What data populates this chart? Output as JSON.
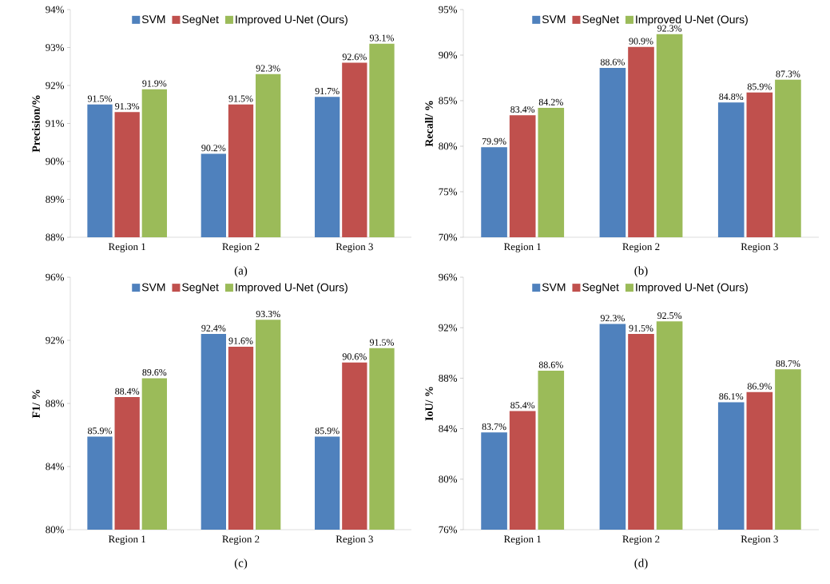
{
  "chart_data": [
    {
      "type": "bar",
      "ylabel": "Precision/%",
      "categories": [
        "Region 1",
        "Region 2",
        "Region 3"
      ],
      "legend": "top",
      "annotations": [
        "(a)"
      ],
      "ylim": [
        88,
        94
      ],
      "yticks": [
        {
          "value": 88,
          "label": "88%"
        },
        {
          "value": 89,
          "label": "89%"
        },
        {
          "value": 90,
          "label": "90%"
        },
        {
          "value": 91,
          "label": "91%"
        },
        {
          "value": 92,
          "label": "92%"
        },
        {
          "value": 93,
          "label": "93%"
        },
        {
          "value": 94,
          "label": "94%"
        }
      ],
      "series": [
        {
          "name": "SVM",
          "color": "#4f81bd",
          "values": [
            91.5,
            90.2,
            91.7
          ],
          "value_labels": [
            "91.5%",
            "90.2%",
            "91.7%"
          ]
        },
        {
          "name": "SegNet",
          "color": "#c0504d",
          "values": [
            91.3,
            91.5,
            92.6
          ],
          "value_labels": [
            "91.3%",
            "91.5%",
            "92.6%"
          ]
        },
        {
          "name": "Improved U-Net (Ours)",
          "color": "#9bbb59",
          "values": [
            91.9,
            92.3,
            93.1
          ],
          "value_labels": [
            "91.9%",
            "92.3%",
            "93.1%"
          ]
        }
      ]
    },
    {
      "type": "bar",
      "ylabel": "Recall/ %",
      "categories": [
        "Region 1",
        "Region 2",
        "Region 3"
      ],
      "legend": "top",
      "annotations": [
        "(b)"
      ],
      "ylim": [
        70,
        95
      ],
      "yticks": [
        {
          "value": 70,
          "label": "70%"
        },
        {
          "value": 75,
          "label": "75%"
        },
        {
          "value": 80,
          "label": "80%"
        },
        {
          "value": 85,
          "label": "85%"
        },
        {
          "value": 90,
          "label": "90%"
        },
        {
          "value": 95,
          "label": "95%"
        }
      ],
      "series": [
        {
          "name": "SVM",
          "color": "#4f81bd",
          "values": [
            79.9,
            88.6,
            84.8
          ],
          "value_labels": [
            "79.9%",
            "88.6%",
            "84.8%"
          ]
        },
        {
          "name": "SegNet",
          "color": "#c0504d",
          "values": [
            83.4,
            90.9,
            85.9
          ],
          "value_labels": [
            "83.4%",
            "90.9%",
            "85.9%"
          ]
        },
        {
          "name": "Improved U-Net (Ours)",
          "color": "#9bbb59",
          "values": [
            84.2,
            92.3,
            87.3
          ],
          "value_labels": [
            "84.2%",
            "92.3%",
            "87.3%"
          ]
        }
      ]
    },
    {
      "type": "bar",
      "ylabel": "F1/ %",
      "categories": [
        "Region 1",
        "Region 2",
        "Region 3"
      ],
      "legend": "top",
      "annotations": [
        "(c)"
      ],
      "ylim": [
        80,
        96
      ],
      "yticks": [
        {
          "value": 80,
          "label": "80%"
        },
        {
          "value": 84,
          "label": "84%"
        },
        {
          "value": 88,
          "label": "88%"
        },
        {
          "value": 92,
          "label": "92%"
        },
        {
          "value": 96,
          "label": "96%"
        }
      ],
      "series": [
        {
          "name": "SVM",
          "color": "#4f81bd",
          "values": [
            85.9,
            92.4,
            85.9
          ],
          "value_labels": [
            "85.9%",
            "92.4%",
            "85.9%"
          ]
        },
        {
          "name": "SegNet",
          "color": "#c0504d",
          "values": [
            88.4,
            91.6,
            90.6
          ],
          "value_labels": [
            "88.4%",
            "91.6%",
            "90.6%"
          ]
        },
        {
          "name": "Improved U-Net (Ours)",
          "color": "#9bbb59",
          "values": [
            89.6,
            93.3,
            91.5
          ],
          "value_labels": [
            "89.6%",
            "93.3%",
            "91.5%"
          ]
        }
      ]
    },
    {
      "type": "bar",
      "ylabel": "IoU/ %",
      "categories": [
        "Region 1",
        "Region 2",
        "Region 3"
      ],
      "legend": "top",
      "annotations": [
        "(d)"
      ],
      "ylim": [
        76,
        96
      ],
      "yticks": [
        {
          "value": 76,
          "label": "76%"
        },
        {
          "value": 80,
          "label": "80%"
        },
        {
          "value": 84,
          "label": "84%"
        },
        {
          "value": 88,
          "label": "88%"
        },
        {
          "value": 92,
          "label": "92%"
        },
        {
          "value": 96,
          "label": "96%"
        }
      ],
      "series": [
        {
          "name": "SVM",
          "color": "#4f81bd",
          "values": [
            83.7,
            92.3,
            86.1
          ],
          "value_labels": [
            "83.7%",
            "92.3%",
            "86.1%"
          ]
        },
        {
          "name": "SegNet",
          "color": "#c0504d",
          "values": [
            85.4,
            91.5,
            86.9
          ],
          "value_labels": [
            "85.4%",
            "91.5%",
            "86.9%"
          ]
        },
        {
          "name": "Improved U-Net (Ours)",
          "color": "#9bbb59",
          "values": [
            88.6,
            92.5,
            88.7
          ],
          "value_labels": [
            "88.6%",
            "92.5%",
            "88.7%"
          ]
        }
      ]
    }
  ]
}
